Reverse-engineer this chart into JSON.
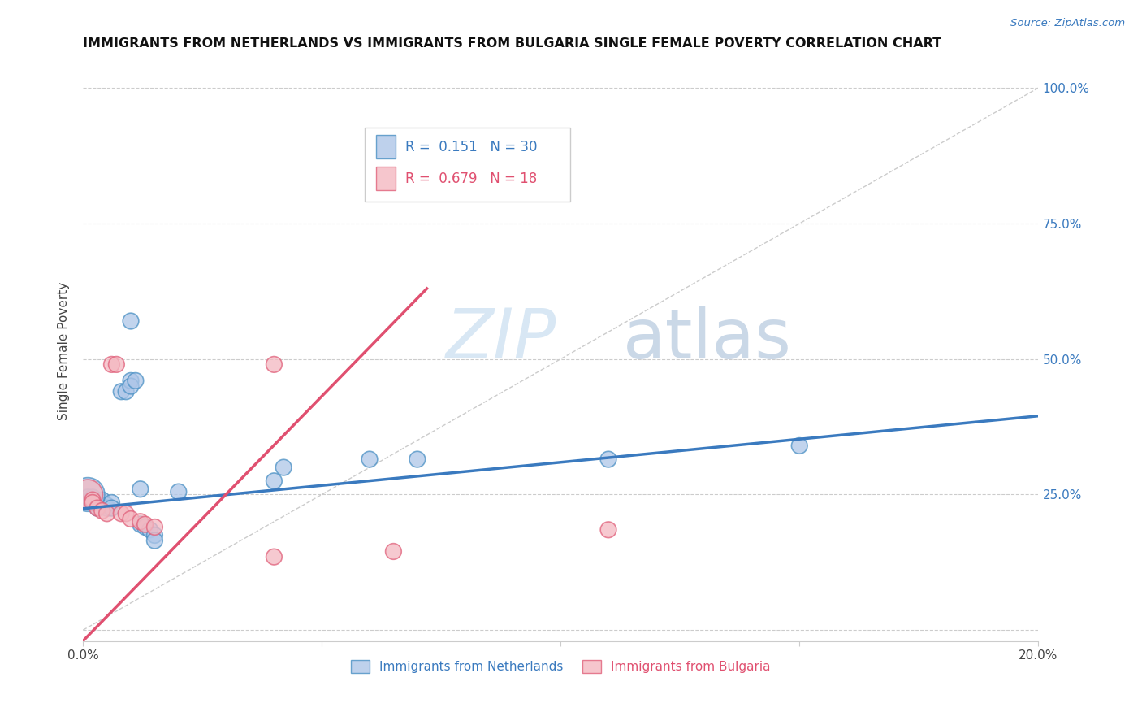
{
  "title": "IMMIGRANTS FROM NETHERLANDS VS IMMIGRANTS FROM BULGARIA SINGLE FEMALE POVERTY CORRELATION CHART",
  "source": "Source: ZipAtlas.com",
  "ylabel": "Single Female Poverty",
  "y_ticks": [
    0.0,
    0.25,
    0.5,
    0.75,
    1.0
  ],
  "y_tick_labels": [
    "",
    "25.0%",
    "50.0%",
    "75.0%",
    "100.0%"
  ],
  "x_ticks": [
    0.0,
    0.05,
    0.1,
    0.15,
    0.2
  ],
  "x_tick_labels": [
    "0.0%",
    "",
    "",
    "",
    "20.0%"
  ],
  "xlim": [
    0.0,
    0.2
  ],
  "ylim": [
    -0.02,
    1.05
  ],
  "r_blue": 0.151,
  "n_blue": 30,
  "r_pink": 0.679,
  "n_pink": 18,
  "blue_color": "#aec6e8",
  "pink_color": "#f4b8c1",
  "blue_edge_color": "#4a90c4",
  "pink_edge_color": "#e0607a",
  "blue_line_color": "#3a7abf",
  "pink_line_color": "#e05070",
  "diagonal_color": "#cccccc",
  "legend_blue_label": "Immigrants from Netherlands",
  "legend_pink_label": "Immigrants from Bulgaria",
  "watermark_zip": "ZIP",
  "watermark_atlas": "atlas",
  "blue_points": [
    [
      0.001,
      0.245
    ],
    [
      0.002,
      0.245
    ],
    [
      0.002,
      0.235
    ],
    [
      0.003,
      0.235
    ],
    [
      0.003,
      0.225
    ],
    [
      0.004,
      0.24
    ],
    [
      0.005,
      0.23
    ],
    [
      0.005,
      0.225
    ],
    [
      0.006,
      0.235
    ],
    [
      0.006,
      0.225
    ],
    [
      0.008,
      0.44
    ],
    [
      0.009,
      0.44
    ],
    [
      0.01,
      0.57
    ],
    [
      0.01,
      0.46
    ],
    [
      0.01,
      0.45
    ],
    [
      0.011,
      0.46
    ],
    [
      0.012,
      0.26
    ],
    [
      0.012,
      0.195
    ],
    [
      0.013,
      0.19
    ],
    [
      0.014,
      0.185
    ],
    [
      0.015,
      0.175
    ],
    [
      0.015,
      0.165
    ],
    [
      0.02,
      0.255
    ],
    [
      0.04,
      0.275
    ],
    [
      0.042,
      0.3
    ],
    [
      0.06,
      0.315
    ],
    [
      0.07,
      0.315
    ],
    [
      0.11,
      0.315
    ],
    [
      0.15,
      0.34
    ],
    [
      0.001,
      0.25
    ]
  ],
  "pink_points": [
    [
      0.001,
      0.25
    ],
    [
      0.002,
      0.24
    ],
    [
      0.002,
      0.235
    ],
    [
      0.003,
      0.225
    ],
    [
      0.004,
      0.22
    ],
    [
      0.005,
      0.215
    ],
    [
      0.006,
      0.49
    ],
    [
      0.007,
      0.49
    ],
    [
      0.008,
      0.215
    ],
    [
      0.009,
      0.215
    ],
    [
      0.01,
      0.205
    ],
    [
      0.012,
      0.2
    ],
    [
      0.013,
      0.195
    ],
    [
      0.015,
      0.19
    ],
    [
      0.04,
      0.49
    ],
    [
      0.04,
      0.135
    ],
    [
      0.065,
      0.145
    ],
    [
      0.11,
      0.185
    ]
  ],
  "blue_marker_size": 200,
  "pink_marker_size": 200,
  "blue_large_point_idx": 29,
  "blue_large_size": 900,
  "pink_large_point_idx": 0,
  "pink_large_size": 700,
  "blue_line_x0": 0.0,
  "blue_line_x1": 0.2,
  "blue_line_y0": 0.224,
  "blue_line_y1": 0.395,
  "pink_line_x0": 0.0,
  "pink_line_x1": 0.072,
  "pink_line_y0": -0.02,
  "pink_line_y1": 0.63
}
